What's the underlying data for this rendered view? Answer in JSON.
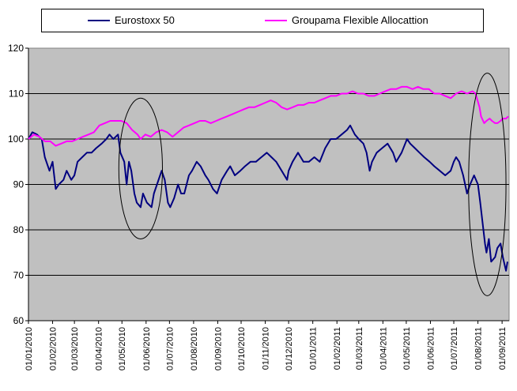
{
  "chart_data": {
    "type": "line",
    "title": "",
    "xlabel": "",
    "ylabel": "",
    "ylim": [
      60,
      120
    ],
    "yticks": [
      60,
      70,
      80,
      90,
      100,
      110,
      120
    ],
    "xlim": [
      "01/01/2010",
      "01/09/2011"
    ],
    "xticks": [
      "01/01/2010",
      "01/02/2010",
      "01/03/2010",
      "01/04/2010",
      "01/05/2010",
      "01/06/2010",
      "01/07/2010",
      "01/08/2010",
      "01/09/2010",
      "01/10/2010",
      "01/11/2010",
      "01/12/2010",
      "01/01/2011",
      "01/02/2011",
      "01/03/2011",
      "01/04/2011",
      "01/05/2011",
      "01/06/2011",
      "01/07/2011",
      "01/08/2011",
      "01/09/2011"
    ],
    "grid": "horizontal",
    "background": "#c0c0c0",
    "legend_position": "top",
    "series": [
      {
        "name": "Eurostoxx 50",
        "color": "#000080",
        "points": [
          [
            "01/01/2010",
            100
          ],
          [
            "06/01/2010",
            101.5
          ],
          [
            "12/01/2010",
            101
          ],
          [
            "18/01/2010",
            100
          ],
          [
            "22/01/2010",
            96
          ],
          [
            "28/01/2010",
            93
          ],
          [
            "01/02/2010",
            95
          ],
          [
            "05/02/2010",
            89
          ],
          [
            "09/02/2010",
            90
          ],
          [
            "15/02/2010",
            91
          ],
          [
            "19/02/2010",
            93
          ],
          [
            "25/02/2010",
            91
          ],
          [
            "01/03/2010",
            92
          ],
          [
            "05/03/2010",
            95
          ],
          [
            "11/03/2010",
            96
          ],
          [
            "17/03/2010",
            97
          ],
          [
            "23/03/2010",
            97
          ],
          [
            "29/03/2010",
            98
          ],
          [
            "05/04/2010",
            99
          ],
          [
            "11/04/2010",
            100
          ],
          [
            "15/04/2010",
            101
          ],
          [
            "20/04/2010",
            100
          ],
          [
            "26/04/2010",
            101
          ],
          [
            "29/04/2010",
            97
          ],
          [
            "04/05/2010",
            95
          ],
          [
            "07/05/2010",
            90
          ],
          [
            "10/05/2010",
            95
          ],
          [
            "13/05/2010",
            93
          ],
          [
            "17/05/2010",
            88
          ],
          [
            "20/05/2010",
            86
          ],
          [
            "25/05/2010",
            85
          ],
          [
            "28/05/2010",
            88
          ],
          [
            "02/06/2010",
            86
          ],
          [
            "08/06/2010",
            85
          ],
          [
            "11/06/2010",
            88
          ],
          [
            "15/06/2010",
            90
          ],
          [
            "21/06/2010",
            93
          ],
          [
            "25/06/2010",
            91
          ],
          [
            "29/06/2010",
            86
          ],
          [
            "02/07/2010",
            85
          ],
          [
            "07/07/2010",
            87
          ],
          [
            "12/07/2010",
            90
          ],
          [
            "16/07/2010",
            88
          ],
          [
            "20/07/2010",
            88
          ],
          [
            "26/07/2010",
            92
          ],
          [
            "30/07/2010",
            93
          ],
          [
            "05/08/2010",
            95
          ],
          [
            "10/08/2010",
            94
          ],
          [
            "16/08/2010",
            92
          ],
          [
            "20/08/2010",
            91
          ],
          [
            "26/08/2010",
            89
          ],
          [
            "31/08/2010",
            88
          ],
          [
            "06/09/2010",
            91
          ],
          [
            "13/09/2010",
            93
          ],
          [
            "17/09/2010",
            94
          ],
          [
            "23/09/2010",
            92
          ],
          [
            "30/09/2010",
            93
          ],
          [
            "06/10/2010",
            94
          ],
          [
            "13/10/2010",
            95
          ],
          [
            "20/10/2010",
            95
          ],
          [
            "27/10/2010",
            96
          ],
          [
            "03/11/2010",
            97
          ],
          [
            "09/11/2010",
            96
          ],
          [
            "15/11/2010",
            95
          ],
          [
            "22/11/2010",
            93
          ],
          [
            "29/11/2010",
            91
          ],
          [
            "01/12/2010",
            93
          ],
          [
            "06/12/2010",
            95
          ],
          [
            "13/12/2010",
            97
          ],
          [
            "20/12/2010",
            95
          ],
          [
            "27/12/2010",
            95
          ],
          [
            "03/01/2011",
            96
          ],
          [
            "10/01/2011",
            95
          ],
          [
            "17/01/2011",
            98
          ],
          [
            "24/01/2011",
            100
          ],
          [
            "31/01/2011",
            100
          ],
          [
            "07/02/2011",
            101
          ],
          [
            "14/02/2011",
            102
          ],
          [
            "18/02/2011",
            103
          ],
          [
            "24/02/2011",
            101
          ],
          [
            "01/03/2011",
            100
          ],
          [
            "07/03/2011",
            99
          ],
          [
            "11/03/2011",
            97
          ],
          [
            "15/03/2011",
            93
          ],
          [
            "18/03/2011",
            95
          ],
          [
            "24/03/2011",
            97
          ],
          [
            "31/03/2011",
            98
          ],
          [
            "07/04/2011",
            99
          ],
          [
            "14/04/2011",
            97
          ],
          [
            "18/04/2011",
            95
          ],
          [
            "25/04/2011",
            97
          ],
          [
            "02/05/2011",
            100
          ],
          [
            "06/05/2011",
            99
          ],
          [
            "12/05/2011",
            98
          ],
          [
            "18/05/2011",
            97
          ],
          [
            "24/05/2011",
            96
          ],
          [
            "31/05/2011",
            95
          ],
          [
            "06/06/2011",
            94
          ],
          [
            "13/06/2011",
            93
          ],
          [
            "20/06/2011",
            92
          ],
          [
            "27/06/2011",
            93
          ],
          [
            "01/07/2011",
            95
          ],
          [
            "04/07/2011",
            96
          ],
          [
            "08/07/2011",
            95
          ],
          [
            "13/07/2011",
            92
          ],
          [
            "18/07/2011",
            88
          ],
          [
            "22/07/2011",
            90
          ],
          [
            "27/07/2011",
            92
          ],
          [
            "01/08/2011",
            90
          ],
          [
            "04/08/2011",
            86
          ],
          [
            "08/08/2011",
            80
          ],
          [
            "10/08/2011",
            77
          ],
          [
            "12/08/2011",
            75
          ],
          [
            "15/08/2011",
            78
          ],
          [
            "18/08/2011",
            73
          ],
          [
            "23/08/2011",
            74
          ],
          [
            "26/08/2011",
            76
          ],
          [
            "30/08/2011",
            77
          ],
          [
            "02/09/2011",
            74
          ],
          [
            "06/09/2011",
            71
          ],
          [
            "08/09/2011",
            73
          ]
        ]
      },
      {
        "name": "Groupama Flexible Allocattion",
        "color": "#ff00ff",
        "points": [
          [
            "01/01/2010",
            100
          ],
          [
            "08/01/2010",
            101
          ],
          [
            "15/01/2010",
            100.5
          ],
          [
            "22/01/2010",
            99.5
          ],
          [
            "29/01/2010",
            99.5
          ],
          [
            "05/02/2010",
            98.5
          ],
          [
            "12/02/2010",
            99
          ],
          [
            "19/02/2010",
            99.5
          ],
          [
            "26/02/2010",
            99.5
          ],
          [
            "05/03/2010",
            100
          ],
          [
            "12/03/2010",
            100.5
          ],
          [
            "19/03/2010",
            101
          ],
          [
            "26/03/2010",
            101.5
          ],
          [
            "02/04/2010",
            103
          ],
          [
            "09/04/2010",
            103.5
          ],
          [
            "16/04/2010",
            104
          ],
          [
            "23/04/2010",
            104
          ],
          [
            "30/04/2010",
            104
          ],
          [
            "07/05/2010",
            103.5
          ],
          [
            "14/05/2010",
            102
          ],
          [
            "21/05/2010",
            101
          ],
          [
            "25/05/2010",
            100
          ],
          [
            "31/05/2010",
            101
          ],
          [
            "07/06/2010",
            100.5
          ],
          [
            "14/06/2010",
            101.5
          ],
          [
            "21/06/2010",
            102
          ],
          [
            "28/06/2010",
            101.5
          ],
          [
            "05/07/2010",
            100.5
          ],
          [
            "12/07/2010",
            101.5
          ],
          [
            "19/07/2010",
            102.5
          ],
          [
            "26/07/2010",
            103
          ],
          [
            "02/08/2010",
            103.5
          ],
          [
            "09/08/2010",
            104
          ],
          [
            "16/08/2010",
            104
          ],
          [
            "23/08/2010",
            103.5
          ],
          [
            "30/08/2010",
            104
          ],
          [
            "06/09/2010",
            104.5
          ],
          [
            "13/09/2010",
            105
          ],
          [
            "20/09/2010",
            105.5
          ],
          [
            "27/09/2010",
            106
          ],
          [
            "04/10/2010",
            106.5
          ],
          [
            "11/10/2010",
            107
          ],
          [
            "18/10/2010",
            107
          ],
          [
            "25/10/2010",
            107.5
          ],
          [
            "01/11/2010",
            108
          ],
          [
            "08/11/2010",
            108.5
          ],
          [
            "15/11/2010",
            108
          ],
          [
            "22/11/2010",
            107
          ],
          [
            "29/11/2010",
            106.5
          ],
          [
            "06/12/2010",
            107
          ],
          [
            "13/12/2010",
            107.5
          ],
          [
            "20/12/2010",
            107.5
          ],
          [
            "27/12/2010",
            108
          ],
          [
            "03/01/2011",
            108
          ],
          [
            "10/01/2011",
            108.5
          ],
          [
            "17/01/2011",
            109
          ],
          [
            "24/01/2011",
            109.5
          ],
          [
            "31/01/2011",
            109.5
          ],
          [
            "07/02/2011",
            110
          ],
          [
            "14/02/2011",
            110
          ],
          [
            "21/02/2011",
            110.5
          ],
          [
            "28/02/2011",
            110
          ],
          [
            "07/03/2011",
            110
          ],
          [
            "14/03/2011",
            109.5
          ],
          [
            "21/03/2011",
            109.5
          ],
          [
            "28/03/2011",
            110
          ],
          [
            "04/04/2011",
            110.5
          ],
          [
            "11/04/2011",
            111
          ],
          [
            "18/04/2011",
            111
          ],
          [
            "25/04/2011",
            111.5
          ],
          [
            "02/05/2011",
            111.5
          ],
          [
            "09/05/2011",
            111
          ],
          [
            "16/05/2011",
            111.5
          ],
          [
            "23/05/2011",
            111
          ],
          [
            "30/05/2011",
            111
          ],
          [
            "06/06/2011",
            110
          ],
          [
            "13/06/2011",
            110
          ],
          [
            "20/06/2011",
            109.5
          ],
          [
            "27/06/2011",
            109
          ],
          [
            "04/07/2011",
            110
          ],
          [
            "11/07/2011",
            110.5
          ],
          [
            "18/07/2011",
            110
          ],
          [
            "25/07/2011",
            110.5
          ],
          [
            "29/07/2011",
            110
          ],
          [
            "03/08/2011",
            107
          ],
          [
            "05/08/2011",
            105
          ],
          [
            "09/08/2011",
            103.5
          ],
          [
            "12/08/2011",
            104
          ],
          [
            "16/08/2011",
            104.5
          ],
          [
            "19/08/2011",
            104
          ],
          [
            "23/08/2011",
            103.5
          ],
          [
            "26/08/2011",
            103.5
          ],
          [
            "30/08/2011",
            104
          ],
          [
            "02/09/2011",
            104.5
          ],
          [
            "06/09/2011",
            104.5
          ],
          [
            "09/09/2011",
            105
          ]
        ]
      }
    ],
    "annotations": [
      {
        "shape": "ellipse",
        "center": [
          "25/05/2010",
          93.5
        ],
        "rx_days": 28,
        "ry_units": 15.5
      },
      {
        "shape": "ellipse",
        "center": [
          "13/08/2011",
          90
        ],
        "rx_days": 24,
        "ry_units": 24.5
      }
    ]
  }
}
